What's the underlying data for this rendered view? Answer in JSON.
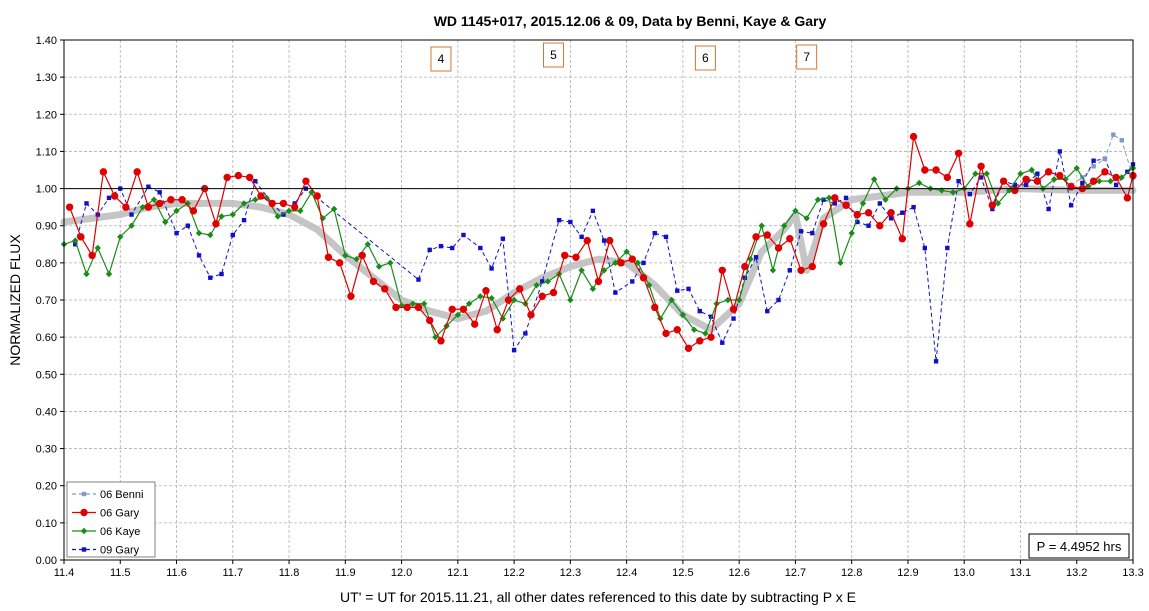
{
  "chart_data": {
    "type": "line",
    "title": "WD 1145+017, 2015.12.06 & 09, Data by Benni, Kaye & Gary",
    "xlabel": "UT' = UT for 2015.11.21, all other dates referenced to this date by subtracting P x E",
    "ylabel": "NORMALIZED FLUX",
    "xlim": [
      11.4,
      13.3
    ],
    "ylim": [
      0.0,
      1.4
    ],
    "x_ticks": [
      "11.4",
      "11.5",
      "11.6",
      "11.7",
      "11.8",
      "11.9",
      "12.0",
      "12.1",
      "12.2",
      "12.3",
      "12.4",
      "12.5",
      "12.6",
      "12.7",
      "12.8",
      "12.9",
      "13.0",
      "13.1",
      "13.2",
      "13.3"
    ],
    "y_ticks": [
      "0.00",
      "0.10",
      "0.20",
      "0.30",
      "0.40",
      "0.50",
      "0.60",
      "0.70",
      "0.80",
      "0.90",
      "1.00",
      "1.10",
      "1.20",
      "1.30",
      "1.40"
    ],
    "reference_line_y": 1.0,
    "grid": true,
    "legend_position": "bottom-left",
    "annotation": "P = 4.4952 hrs",
    "event_labels": [
      {
        "label": "4",
        "x": 12.07
      },
      {
        "label": "5",
        "x": 12.27
      },
      {
        "label": "6",
        "x": 12.54
      },
      {
        "label": "7",
        "x": 12.72
      }
    ],
    "trend": {
      "color": "#bfbfbf",
      "x": [
        11.4,
        11.5,
        11.55,
        11.6,
        11.7,
        11.75,
        11.8,
        11.85,
        11.9,
        11.95,
        12.0,
        12.05,
        12.1,
        12.15,
        12.2,
        12.25,
        12.3,
        12.35,
        12.4,
        12.45,
        12.5,
        12.55,
        12.6,
        12.64,
        12.68,
        12.7,
        12.72,
        12.75,
        12.8,
        12.85,
        12.9,
        13.0,
        13.1,
        13.2,
        13.3
      ],
      "y": [
        0.91,
        0.93,
        0.95,
        0.96,
        0.96,
        0.95,
        0.93,
        0.89,
        0.82,
        0.76,
        0.7,
        0.67,
        0.65,
        0.67,
        0.72,
        0.76,
        0.79,
        0.81,
        0.8,
        0.74,
        0.66,
        0.62,
        0.69,
        0.83,
        0.89,
        0.93,
        0.78,
        0.92,
        0.97,
        0.98,
        0.99,
        0.99,
        1.0,
        0.995,
        0.995
      ]
    },
    "series": [
      {
        "name": "06 Benni",
        "color": "#8099c8",
        "marker": "square",
        "dash": "4,3",
        "x": [
          13.19,
          13.21,
          13.23,
          13.25,
          13.265,
          13.28,
          13.3
        ],
        "y": [
          1.01,
          1.03,
          1.06,
          1.08,
          1.145,
          1.13,
          1.03
        ]
      },
      {
        "name": "06 Gary",
        "color": "#e00000",
        "marker": "circle",
        "dash": "",
        "x": [
          11.41,
          11.43,
          11.45,
          11.47,
          11.49,
          11.51,
          11.53,
          11.55,
          11.57,
          11.59,
          11.61,
          11.63,
          11.65,
          11.67,
          11.69,
          11.71,
          11.73,
          11.75,
          11.77,
          11.79,
          11.81,
          11.83,
          11.85,
          11.87,
          11.89,
          11.91,
          11.93,
          11.95,
          11.97,
          11.99,
          12.01,
          12.03,
          12.05,
          12.07,
          12.09,
          12.11,
          12.13,
          12.15,
          12.17,
          12.19,
          12.21,
          12.23,
          12.25,
          12.27,
          12.29,
          12.31,
          12.33,
          12.35,
          12.37,
          12.39,
          12.41,
          12.43,
          12.45,
          12.47,
          12.49,
          12.51,
          12.53,
          12.55,
          12.57,
          12.59,
          12.61,
          12.63,
          12.65,
          12.67,
          12.69,
          12.71,
          12.73,
          12.75,
          12.77,
          12.79,
          12.81,
          12.83,
          12.85,
          12.87,
          12.89,
          12.91,
          12.93,
          12.95,
          12.97,
          12.99,
          13.01,
          13.03,
          13.05,
          13.07,
          13.09,
          13.11,
          13.13,
          13.15,
          13.17,
          13.19,
          13.21,
          13.23,
          13.25,
          13.27,
          13.29,
          13.3
        ],
        "y": [
          0.95,
          0.87,
          0.82,
          1.045,
          0.98,
          0.95,
          1.045,
          0.95,
          0.96,
          0.97,
          0.97,
          0.94,
          1.0,
          0.905,
          1.03,
          1.035,
          1.03,
          0.98,
          0.96,
          0.96,
          0.95,
          1.02,
          0.98,
          0.815,
          0.8,
          0.71,
          0.82,
          0.75,
          0.73,
          0.68,
          0.68,
          0.68,
          0.645,
          0.59,
          0.675,
          0.675,
          0.635,
          0.725,
          0.62,
          0.7,
          0.73,
          0.66,
          0.71,
          0.72,
          0.82,
          0.815,
          0.86,
          0.75,
          0.86,
          0.8,
          0.81,
          0.76,
          0.68,
          0.61,
          0.62,
          0.57,
          0.59,
          0.6,
          0.78,
          0.675,
          0.79,
          0.87,
          0.875,
          0.84,
          0.865,
          0.78,
          0.79,
          0.905,
          0.975,
          0.955,
          0.93,
          0.935,
          0.9,
          0.935,
          0.865,
          1.14,
          1.05,
          1.05,
          1.03,
          1.095,
          0.905,
          1.06,
          0.955,
          1.02,
          0.995,
          1.025,
          1.02,
          1.045,
          1.035,
          1.005,
          1.0,
          1.02,
          1.045,
          1.03,
          0.975,
          1.035
        ]
      },
      {
        "name": "06 Kaye",
        "color": "#1a8c1a",
        "marker": "diamond",
        "dash": "",
        "x": [
          11.4,
          11.42,
          11.44,
          11.46,
          11.48,
          11.5,
          11.52,
          11.54,
          11.56,
          11.58,
          11.6,
          11.62,
          11.64,
          11.66,
          11.68,
          11.7,
          11.72,
          11.74,
          11.76,
          11.78,
          11.8,
          11.82,
          11.84,
          11.86,
          11.88,
          11.9,
          11.92,
          11.94,
          11.96,
          11.98,
          12.0,
          12.02,
          12.04,
          12.06,
          12.08,
          12.1,
          12.12,
          12.14,
          12.16,
          12.18,
          12.2,
          12.22,
          12.24,
          12.26,
          12.28,
          12.3,
          12.32,
          12.34,
          12.36,
          12.38,
          12.4,
          12.42,
          12.44,
          12.46,
          12.48,
          12.5,
          12.52,
          12.54,
          12.56,
          12.58,
          12.6,
          12.62,
          12.64,
          12.66,
          12.68,
          12.7,
          12.72,
          12.74,
          12.76,
          12.78,
          12.8,
          12.82,
          12.84,
          12.86,
          12.88,
          12.9,
          12.92,
          12.94,
          12.96,
          12.98,
          13.0,
          13.02,
          13.04,
          13.06,
          13.08,
          13.1,
          13.12,
          13.14,
          13.16,
          13.18,
          13.2,
          13.22,
          13.24,
          13.26,
          13.28,
          13.3
        ],
        "y": [
          0.85,
          0.86,
          0.77,
          0.84,
          0.77,
          0.87,
          0.9,
          0.95,
          0.97,
          0.91,
          0.94,
          0.96,
          0.88,
          0.875,
          0.925,
          0.93,
          0.96,
          0.97,
          0.975,
          0.925,
          0.94,
          0.94,
          0.99,
          0.92,
          0.945,
          0.82,
          0.81,
          0.85,
          0.79,
          0.8,
          0.685,
          0.69,
          0.69,
          0.6,
          0.63,
          0.66,
          0.69,
          0.71,
          0.705,
          0.65,
          0.7,
          0.69,
          0.74,
          0.75,
          0.77,
          0.7,
          0.78,
          0.73,
          0.78,
          0.8,
          0.83,
          0.8,
          0.74,
          0.65,
          0.7,
          0.66,
          0.62,
          0.61,
          0.69,
          0.7,
          0.7,
          0.81,
          0.9,
          0.78,
          0.9,
          0.94,
          0.92,
          0.97,
          0.975,
          0.8,
          0.88,
          0.96,
          1.025,
          0.97,
          1.0,
          1.0,
          1.015,
          1.0,
          0.995,
          0.99,
          1.0,
          1.04,
          1.04,
          0.96,
          0.995,
          1.04,
          1.05,
          1.0,
          1.025,
          1.025,
          1.055,
          1.005,
          1.02,
          1.02,
          1.03,
          1.055
        ]
      },
      {
        "name": "09 Gary",
        "color": "#1010c8",
        "marker": "square",
        "dash": "4,3",
        "x": [
          11.42,
          11.44,
          11.46,
          11.48,
          11.5,
          11.52,
          11.55,
          11.57,
          11.6,
          11.62,
          11.64,
          11.66,
          11.68,
          11.7,
          11.72,
          11.74,
          11.77,
          11.79,
          11.81,
          11.83,
          12.03,
          12.05,
          12.07,
          12.09,
          12.11,
          12.14,
          12.16,
          12.18,
          12.2,
          12.22,
          12.25,
          12.28,
          12.3,
          12.32,
          12.34,
          12.36,
          12.38,
          12.41,
          12.43,
          12.45,
          12.47,
          12.49,
          12.51,
          12.53,
          12.55,
          12.57,
          12.59,
          12.61,
          12.63,
          12.65,
          12.67,
          12.69,
          12.71,
          12.73,
          12.75,
          12.77,
          12.79,
          12.81,
          12.83,
          12.85,
          12.87,
          12.89,
          12.91,
          12.93,
          12.95,
          12.97,
          12.99,
          13.01,
          13.03,
          13.05,
          13.07,
          13.09,
          13.11,
          13.13,
          13.15,
          13.17,
          13.19,
          13.21,
          13.23,
          13.25,
          13.27,
          13.29,
          13.3
        ],
        "y": [
          0.85,
          0.96,
          0.93,
          0.975,
          1.0,
          0.93,
          1.005,
          0.99,
          0.88,
          0.9,
          0.82,
          0.76,
          0.77,
          0.875,
          0.915,
          1.02,
          0.96,
          0.93,
          0.96,
          1.0,
          0.755,
          0.835,
          0.845,
          0.84,
          0.875,
          0.84,
          0.785,
          0.865,
          0.565,
          0.61,
          0.75,
          0.915,
          0.91,
          0.87,
          0.94,
          0.86,
          0.72,
          0.75,
          0.8,
          0.88,
          0.87,
          0.725,
          0.73,
          0.67,
          0.655,
          0.585,
          0.65,
          0.76,
          0.815,
          0.67,
          0.7,
          0.78,
          0.885,
          0.88,
          0.97,
          0.96,
          0.975,
          0.91,
          0.9,
          0.96,
          0.92,
          0.935,
          0.95,
          0.84,
          0.535,
          0.84,
          1.02,
          0.985,
          1.03,
          0.945,
          1.02,
          1.01,
          1.01,
          1.04,
          0.945,
          1.1,
          0.955,
          1.015,
          1.075,
          1.08,
          1.01,
          1.045,
          1.065
        ]
      }
    ]
  }
}
